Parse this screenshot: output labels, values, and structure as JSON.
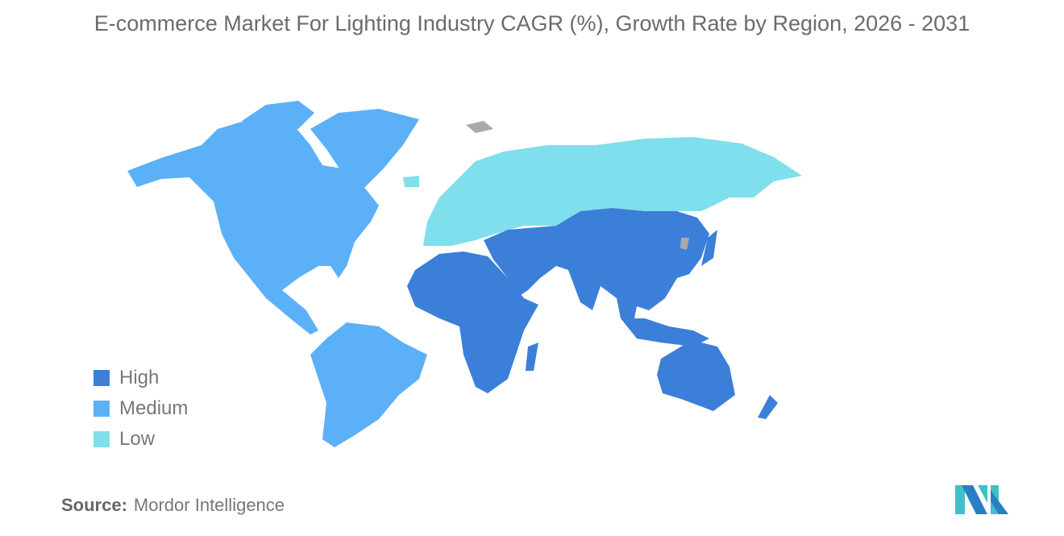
{
  "title": "E-commerce Market For Lighting Industry CAGR (%), Growth Rate by Region, 2026 - 2031",
  "legend": [
    {
      "label": "High",
      "color": "#3b7fd9"
    },
    {
      "label": "Medium",
      "color": "#5cb0f7"
    },
    {
      "label": "Low",
      "color": "#7fdfec"
    }
  ],
  "no_data_color": "#a9a9a9",
  "regions": {
    "North America": "Medium",
    "South America": "Medium",
    "Europe": "Low",
    "Russia": "Low",
    "Middle East": "High",
    "Africa": "High",
    "Asia": "High",
    "Australia & Oceania": "High"
  },
  "source": {
    "label": "Source:",
    "value": "Mordor Intelligence"
  }
}
